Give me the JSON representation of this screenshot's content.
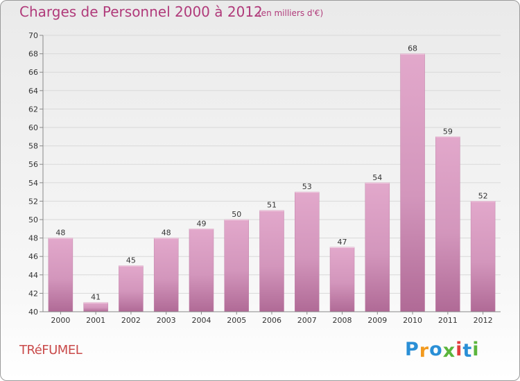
{
  "title": "Charges de Personnel 2000 à 2012",
  "subtitle": "(en milliers d'€)",
  "commune": "TRéFUMEL",
  "logo": {
    "letters": [
      "P",
      "r",
      "o",
      "x",
      "i",
      "t",
      "i"
    ],
    "colors": [
      "#2a8fd6",
      "#f29a1f",
      "#2a8fd6",
      "#5bb53c",
      "#e23c3c",
      "#2a8fd6",
      "#5bb53c"
    ]
  },
  "colors": {
    "bar": "#d48fb8",
    "title": "#b03a7a",
    "commune": "#c94a4a"
  },
  "chart_data": {
    "type": "bar",
    "categories": [
      "2000",
      "2001",
      "2002",
      "2003",
      "2004",
      "2005",
      "2006",
      "2007",
      "2008",
      "2009",
      "2010",
      "2011",
      "2012"
    ],
    "values": [
      48,
      41,
      45,
      48,
      49,
      50,
      51,
      53,
      47,
      54,
      68,
      59,
      52
    ],
    "title": "Charges de Personnel 2000 à 2012",
    "subtitle": "(en milliers d'€)",
    "ylim": [
      40,
      70
    ],
    "yticks": [
      40,
      42,
      44,
      46,
      48,
      50,
      52,
      54,
      56,
      58,
      60,
      62,
      64,
      66,
      68,
      70
    ],
    "grid": true,
    "data_labels": true
  }
}
